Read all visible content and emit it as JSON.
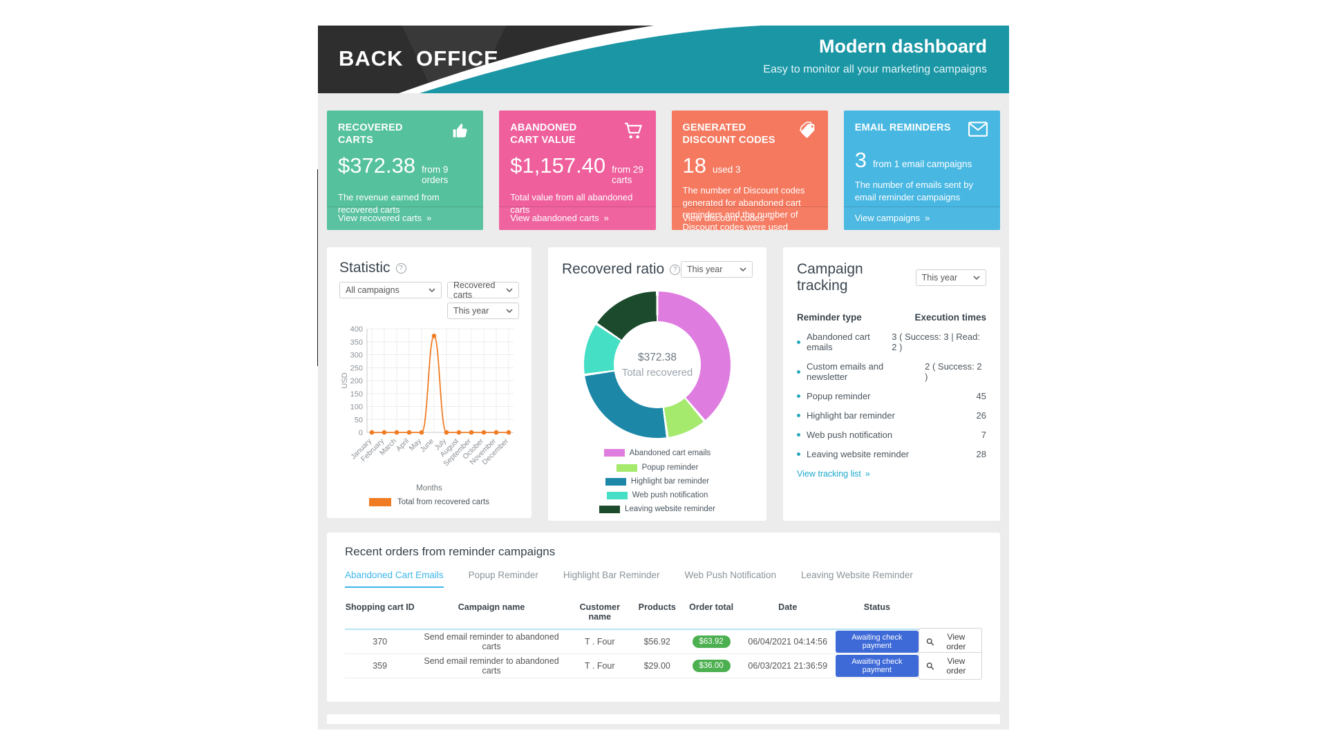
{
  "ui": {
    "more_arrow": "»",
    "help_glyph": "?"
  },
  "header": {
    "brand": "BACK OFFICE",
    "title": "Modern dashboard",
    "subtitle": "Easy to monitor all your marketing campaigns",
    "teal_color": "#1a96a5",
    "dark_color": "#2d2d2d"
  },
  "cards": [
    {
      "title": "RECOVERED CARTS",
      "icon": "thumbs-up-icon",
      "value": "$372.38",
      "suffix": "from 9 orders",
      "description": "The revenue earned from recovered carts",
      "link": "View recovered carts",
      "color": "#55c19d"
    },
    {
      "title": "ABANDONED CART VALUE",
      "icon": "cart-icon",
      "value": "$1,157.40",
      "suffix": "from 29 carts",
      "description": "Total value from all abandoned carts",
      "link": "View abandoned carts",
      "color": "#ef5f9c"
    },
    {
      "title": "GENERATED DISCOUNT CODES",
      "icon": "tags-icon",
      "value": "18",
      "suffix": "used 3",
      "description": "The number of Discount codes generated for abandoned cart reminders and the number of Discount codes were used",
      "link": "View discount codes",
      "color": "#f5795f"
    },
    {
      "title": "EMAIL REMINDERS",
      "icon": "envelope-icon",
      "value": "3",
      "suffix": "from 1 email campaigns",
      "description": "The number of emails sent by email reminder campaigns",
      "link": "View campaigns",
      "color": "#48b7e2"
    }
  ],
  "statistic": {
    "title": "Statistic",
    "filters": {
      "campaign": "All campaigns",
      "metric": "Recovered carts",
      "period": "This year"
    }
  },
  "recovered_ratio": {
    "title": "Recovered ratio",
    "period": "This year"
  },
  "campaign_tracking": {
    "title": "Campaign tracking",
    "period": "This year",
    "col_type": "Reminder type",
    "col_times": "Execution times",
    "rows": [
      {
        "label": "Abandoned cart emails",
        "value": "3 ( Success: 3 | Read: 2 )"
      },
      {
        "label": "Custom emails and newsletter",
        "value": "2 ( Success: 2 )"
      },
      {
        "label": "Popup reminder",
        "value": "45"
      },
      {
        "label": "Highlight bar reminder",
        "value": "26"
      },
      {
        "label": "Web push notification",
        "value": "7"
      },
      {
        "label": "Leaving website reminder",
        "value": "28"
      }
    ],
    "link": "View tracking list"
  },
  "recent_orders": {
    "title": "Recent orders from reminder campaigns",
    "tabs": [
      {
        "label": "Abandoned Cart Emails",
        "active": true
      },
      {
        "label": "Popup Reminder",
        "active": false
      },
      {
        "label": "Highlight Bar Reminder",
        "active": false
      },
      {
        "label": "Web Push Notification",
        "active": false
      },
      {
        "label": "Leaving Website Reminder",
        "active": false
      }
    ],
    "columns": {
      "cart_id": "Shopping cart ID",
      "campaign": "Campaign name",
      "customer": "Customer name",
      "products": "Products",
      "order_total": "Order total",
      "date": "Date",
      "status": "Status"
    },
    "rows": [
      {
        "cart_id": "370",
        "campaign": "Send email reminder to abandoned carts",
        "customer": "T . Four",
        "products": "$56.92",
        "order_total": "$63.92",
        "date": "06/04/2021 04:14:56",
        "status": "Awaiting check payment",
        "action": "View order"
      },
      {
        "cart_id": "359",
        "campaign": "Send email reminder to abandoned carts",
        "customer": "T . Four",
        "products": "$29.00",
        "order_total": "$36.00",
        "date": "06/03/2021 21:36:59",
        "status": "Awaiting check payment",
        "action": "View order"
      }
    ]
  },
  "chart_data": [
    {
      "id": "statistic-line",
      "type": "line",
      "x": [
        "January",
        "February",
        "March",
        "April",
        "May",
        "June",
        "July",
        "August",
        "September",
        "October",
        "November",
        "December"
      ],
      "values": [
        0,
        0,
        0,
        0,
        0,
        372.38,
        0,
        0,
        0,
        0,
        0,
        0
      ],
      "xlabel": "Months",
      "ylabel": "USD",
      "ylim": [
        0,
        400
      ],
      "ytick_step": 50,
      "grid": true,
      "legend": "Total from recovered carts",
      "color": "#ef7b23"
    },
    {
      "id": "recovered-ratio-donut",
      "type": "pie",
      "center_value": "$372.38",
      "center_label": "Total recovered",
      "legend_position": "bottom",
      "segments": [
        {
          "label": "Abandoned cart emails",
          "angle_deg": 140,
          "color": "#df7ce0"
        },
        {
          "label": "Popup reminder",
          "angle_deg": 32,
          "color": "#a5e96d"
        },
        {
          "label": "Highlight bar reminder",
          "angle_deg": 90,
          "color": "#1d87a8"
        },
        {
          "label": "Web push notification",
          "angle_deg": 42,
          "color": "#45dfc5"
        },
        {
          "label": "Leaving website reminder",
          "angle_deg": 56,
          "color": "#1b4a2c"
        }
      ]
    }
  ]
}
